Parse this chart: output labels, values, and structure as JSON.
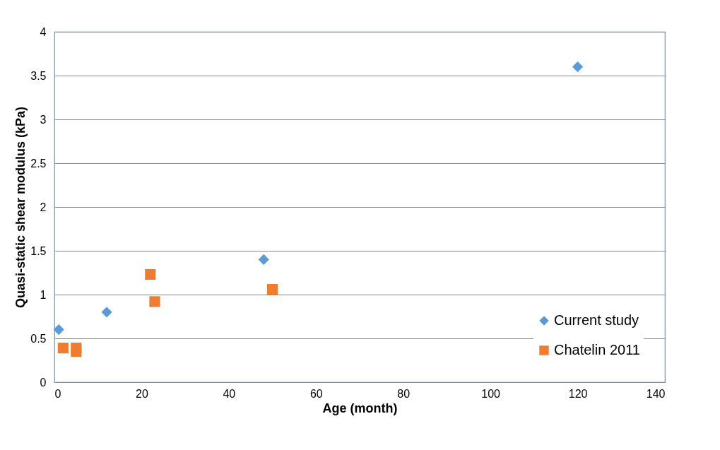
{
  "chart_data": {
    "type": "scatter",
    "xlabel": "Age (month)",
    "ylabel": "Quasi-static shear modulus (kPa)",
    "xlim": [
      0,
      140
    ],
    "xticks": [
      0,
      20,
      40,
      60,
      80,
      100,
      120,
      140
    ],
    "ylim": [
      0,
      4
    ],
    "yticks": [
      0,
      0.5,
      1,
      1.5,
      2,
      2.5,
      3,
      3.5,
      4
    ],
    "grid": "y",
    "legend": "bottom right",
    "series": [
      {
        "name": "Current study",
        "color": "#5b9bd5",
        "marker": "diamond",
        "x": [
          1,
          12,
          48,
          120
        ],
        "values": [
          0.6,
          0.8,
          1.4,
          3.6
        ]
      },
      {
        "name": "Chatelin 2011",
        "color": "#ed7d31",
        "marker": "square",
        "x": [
          2,
          5,
          5,
          22,
          23,
          50
        ],
        "values": [
          0.39,
          0.39,
          0.35,
          1.23,
          0.92,
          1.06
        ]
      }
    ]
  }
}
